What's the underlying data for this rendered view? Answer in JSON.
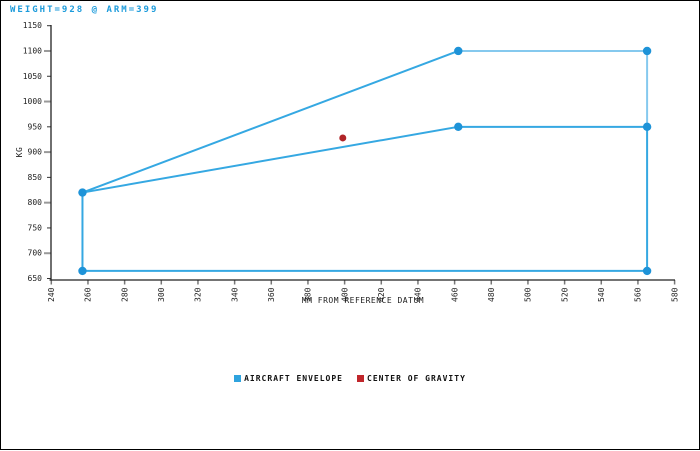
{
  "header": {
    "title": "WEIGHT=928 @ ARM=399",
    "title_color": "#1c9bdb"
  },
  "chart_data": {
    "type": "line",
    "title": "WEIGHT=928 @ ARM=399",
    "xlabel": "MM FROM REFERENCE DATUM",
    "ylabel": "KG",
    "xlim": [
      240,
      580
    ],
    "ylim": [
      650,
      1150
    ],
    "xticks": [
      240,
      260,
      280,
      300,
      320,
      340,
      360,
      380,
      400,
      420,
      440,
      460,
      480,
      500,
      520,
      540,
      560,
      580
    ],
    "yticks": [
      650,
      700,
      750,
      800,
      850,
      900,
      950,
      1000,
      1050,
      1100,
      1150
    ],
    "grid": false,
    "legend_position": "bottom",
    "series": [
      {
        "name": "AIRCRAFT ENVELOPE",
        "type": "line",
        "color": "#35a8e2",
        "color_light": "#85c9ee",
        "marker_color": "#1e93d8",
        "segments": [
          {
            "shade": "normal",
            "points": [
              [
                257,
                665
              ],
              [
                257,
                820
              ],
              [
                462,
                1100
              ]
            ]
          },
          {
            "shade": "light",
            "points": [
              [
                462,
                1100
              ],
              [
                565,
                1100
              ],
              [
                565,
                950
              ]
            ]
          },
          {
            "shade": "normal",
            "points": [
              [
                257,
                820
              ],
              [
                462,
                950
              ],
              [
                565,
                950
              ]
            ]
          },
          {
            "shade": "normal",
            "points": [
              [
                565,
                950
              ],
              [
                565,
                665
              ],
              [
                257,
                665
              ]
            ]
          }
        ],
        "marker_points": [
          [
            257,
            665
          ],
          [
            257,
            820
          ],
          [
            462,
            1100
          ],
          [
            565,
            1100
          ],
          [
            565,
            950
          ],
          [
            462,
            950
          ],
          [
            565,
            665
          ]
        ]
      },
      {
        "name": "CENTER OF GRAVITY",
        "type": "scatter",
        "color": "#b02428",
        "points": [
          [
            399,
            928
          ]
        ]
      }
    ]
  },
  "legend": {
    "items": [
      {
        "label": "AIRCRAFT ENVELOPE",
        "color": "#2fa3de"
      },
      {
        "label": "CENTER OF GRAVITY",
        "color": "#c0262b"
      }
    ]
  }
}
